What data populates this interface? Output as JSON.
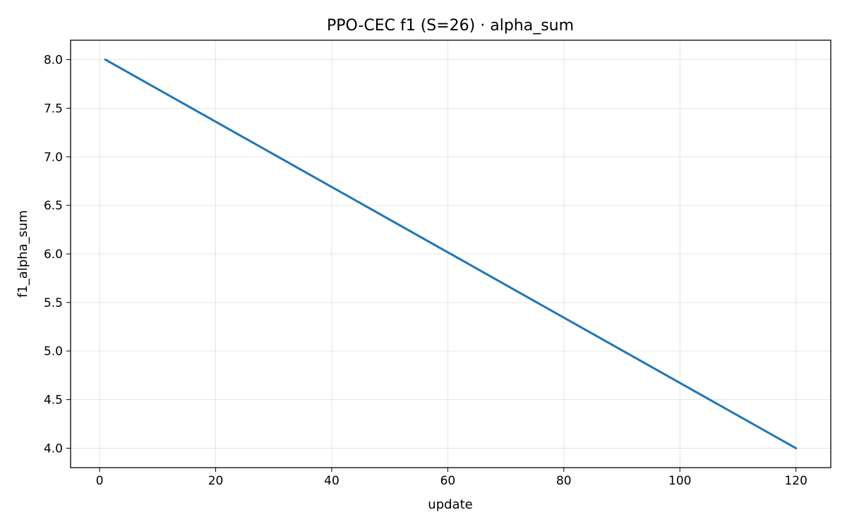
{
  "chart_data": {
    "type": "line",
    "title": "PPO-CEC f1 (S=26) · alpha_sum",
    "xlabel": "update",
    "ylabel": "f1_alpha_sum",
    "xlim": [
      -5,
      126
    ],
    "ylim": [
      3.8,
      8.2
    ],
    "xticks": [
      0,
      20,
      40,
      60,
      80,
      100,
      120
    ],
    "yticks": [
      4.0,
      4.5,
      5.0,
      5.5,
      6.0,
      6.5,
      7.0,
      7.5,
      8.0
    ],
    "xtick_labels": [
      "0",
      "20",
      "40",
      "60",
      "80",
      "100",
      "120"
    ],
    "ytick_labels": [
      "4.0",
      "4.5",
      "5.0",
      "5.5",
      "6.0",
      "6.5",
      "7.0",
      "7.5",
      "8.0"
    ],
    "grid": true,
    "legend": "none",
    "series": [
      {
        "color": "#1f77b4",
        "x": [
          1,
          120
        ],
        "y": [
          8.0,
          4.0
        ]
      }
    ]
  }
}
